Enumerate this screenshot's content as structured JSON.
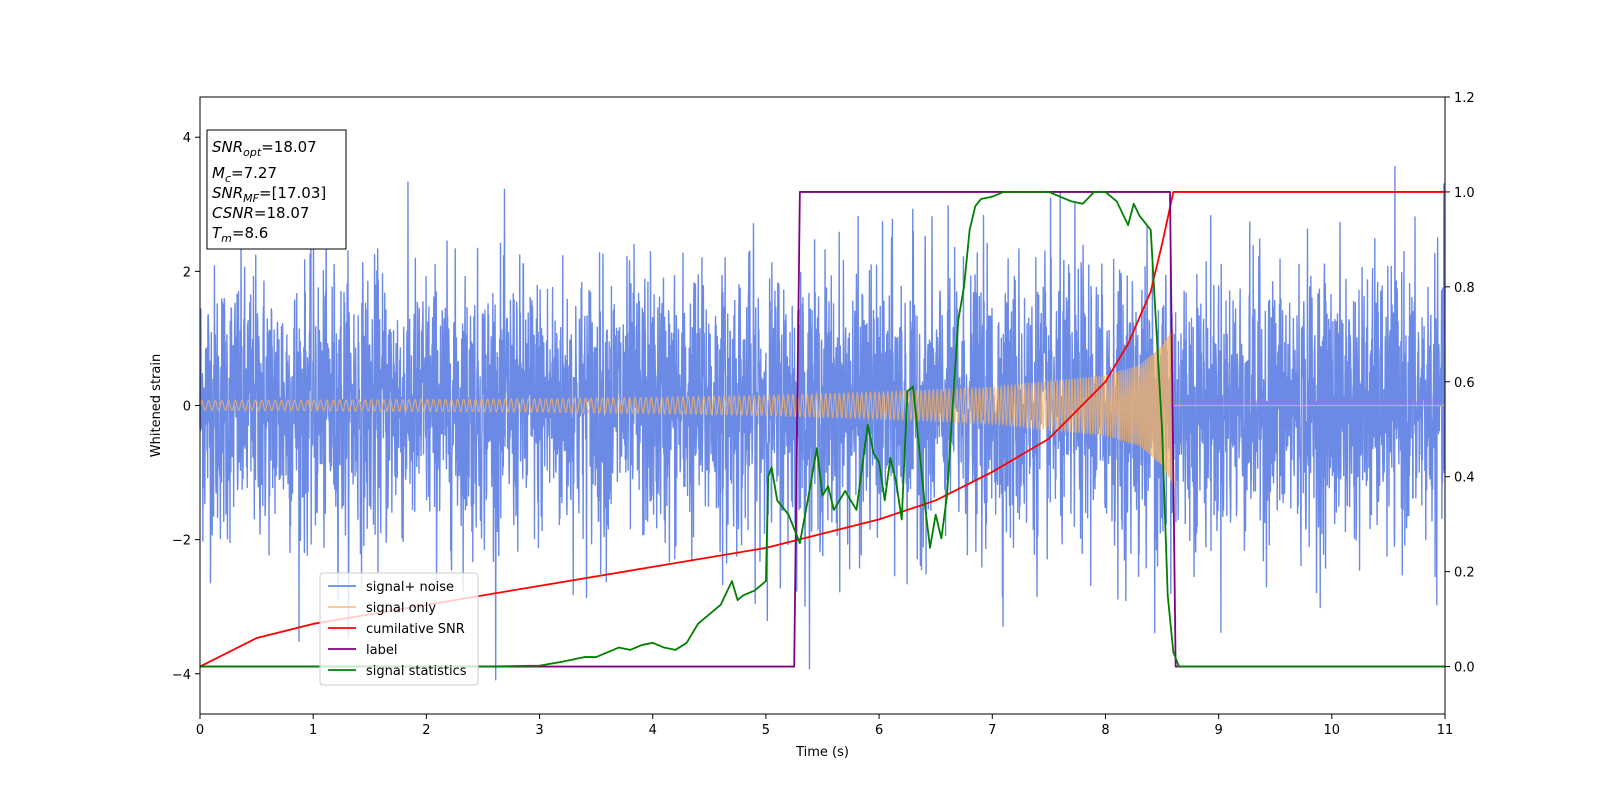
{
  "chart_data": {
    "type": "line",
    "title": "",
    "xlabel": "Time (s)",
    "ylabel": "Whitened strain",
    "xlim": [
      0,
      11
    ],
    "ylim_left": [
      -4.6,
      4.6
    ],
    "ylim_right": [
      -0.1,
      1.2
    ],
    "x_ticks": [
      "0",
      "1",
      "2",
      "3",
      "4",
      "5",
      "6",
      "7",
      "8",
      "9",
      "10",
      "11"
    ],
    "y_ticks_left": [
      "−4",
      "−2",
      "0",
      "2",
      "4"
    ],
    "y_ticks_left_values": [
      -4,
      -2,
      0,
      2,
      4
    ],
    "y_ticks_right": [
      "0.0",
      "0.2",
      "0.4",
      "0.6",
      "0.8",
      "1.0",
      "1.2"
    ],
    "y_ticks_right_values": [
      0,
      0.2,
      0.4,
      0.6,
      0.8,
      1.0,
      1.2
    ],
    "grid": false,
    "legend_position": "lower-left",
    "series": [
      {
        "name": "signal+ noise",
        "axis": "left",
        "color": "#6b8ae6",
        "kind": "noise",
        "std": 1.0,
        "range": [
          0,
          11
        ]
      },
      {
        "name": "signal only",
        "axis": "left",
        "color": "#f5b264",
        "kind": "chirp",
        "merger_time": 8.6,
        "envelope": {
          "x": [
            0,
            1,
            2,
            3,
            4,
            5,
            6,
            7,
            8,
            8.3,
            8.5,
            8.6
          ],
          "y": [
            0.07,
            0.08,
            0.09,
            0.1,
            0.12,
            0.15,
            0.2,
            0.27,
            0.45,
            0.6,
            0.9,
            1.2
          ]
        }
      },
      {
        "name": "cumilative SNR",
        "axis": "right",
        "color": "#ff0000",
        "x": [
          0,
          0.5,
          1,
          2,
          3,
          4,
          5,
          5.5,
          6,
          6.5,
          7,
          7.5,
          8,
          8.2,
          8.4,
          8.5,
          8.6,
          8.62,
          11
        ],
        "y": [
          0.0,
          0.06,
          0.09,
          0.13,
          0.17,
          0.21,
          0.25,
          0.28,
          0.31,
          0.35,
          0.41,
          0.48,
          0.6,
          0.68,
          0.79,
          0.89,
          1.0,
          1.0,
          1.0
        ]
      },
      {
        "name": "label",
        "axis": "right",
        "color": "#800080",
        "x": [
          0,
          5.25,
          5.3,
          8.57,
          8.62,
          11
        ],
        "y": [
          0,
          0,
          1,
          1,
          0,
          0
        ]
      },
      {
        "name": "signal statistics",
        "axis": "right",
        "color": "#008000",
        "x": [
          0,
          0.5,
          1,
          1.5,
          2,
          2.5,
          3,
          3.2,
          3.4,
          3.5,
          3.6,
          3.7,
          3.8,
          3.9,
          4.0,
          4.1,
          4.2,
          4.3,
          4.4,
          4.5,
          4.6,
          4.7,
          4.75,
          4.8,
          4.9,
          5.0,
          5.02,
          5.05,
          5.1,
          5.2,
          5.3,
          5.4,
          5.45,
          5.5,
          5.55,
          5.6,
          5.7,
          5.8,
          5.9,
          5.95,
          6.0,
          6.05,
          6.1,
          6.15,
          6.2,
          6.25,
          6.3,
          6.35,
          6.4,
          6.45,
          6.5,
          6.55,
          6.6,
          6.65,
          6.7,
          6.75,
          6.8,
          6.85,
          6.9,
          7.0,
          7.1,
          7.2,
          7.3,
          7.5,
          7.7,
          7.8,
          7.9,
          8.0,
          8.1,
          8.2,
          8.25,
          8.3,
          8.4,
          8.5,
          8.55,
          8.6,
          8.65,
          8.7,
          9,
          10,
          11
        ],
        "y": [
          0.0,
          0.0,
          0.0,
          0.0,
          0.0,
          0.0,
          0.002,
          0.01,
          0.02,
          0.02,
          0.03,
          0.04,
          0.035,
          0.045,
          0.05,
          0.04,
          0.035,
          0.05,
          0.09,
          0.11,
          0.13,
          0.18,
          0.14,
          0.15,
          0.16,
          0.18,
          0.4,
          0.42,
          0.35,
          0.32,
          0.26,
          0.39,
          0.46,
          0.36,
          0.38,
          0.33,
          0.37,
          0.33,
          0.51,
          0.45,
          0.43,
          0.35,
          0.44,
          0.39,
          0.31,
          0.58,
          0.59,
          0.47,
          0.35,
          0.25,
          0.32,
          0.27,
          0.36,
          0.55,
          0.73,
          0.8,
          0.92,
          0.97,
          0.985,
          0.99,
          1.0,
          1.0,
          1.0,
          1.0,
          0.98,
          0.975,
          1.0,
          1.0,
          0.98,
          0.93,
          0.975,
          0.95,
          0.92,
          0.5,
          0.15,
          0.03,
          0.0,
          0.0,
          0.0,
          0.0,
          0.0
        ]
      }
    ]
  },
  "info_box": {
    "snr_opt": "=18.07",
    "mc": "=7.27",
    "snr_mf": "=[17.03]",
    "csnr": "=18.07",
    "tm": "=8.6"
  }
}
